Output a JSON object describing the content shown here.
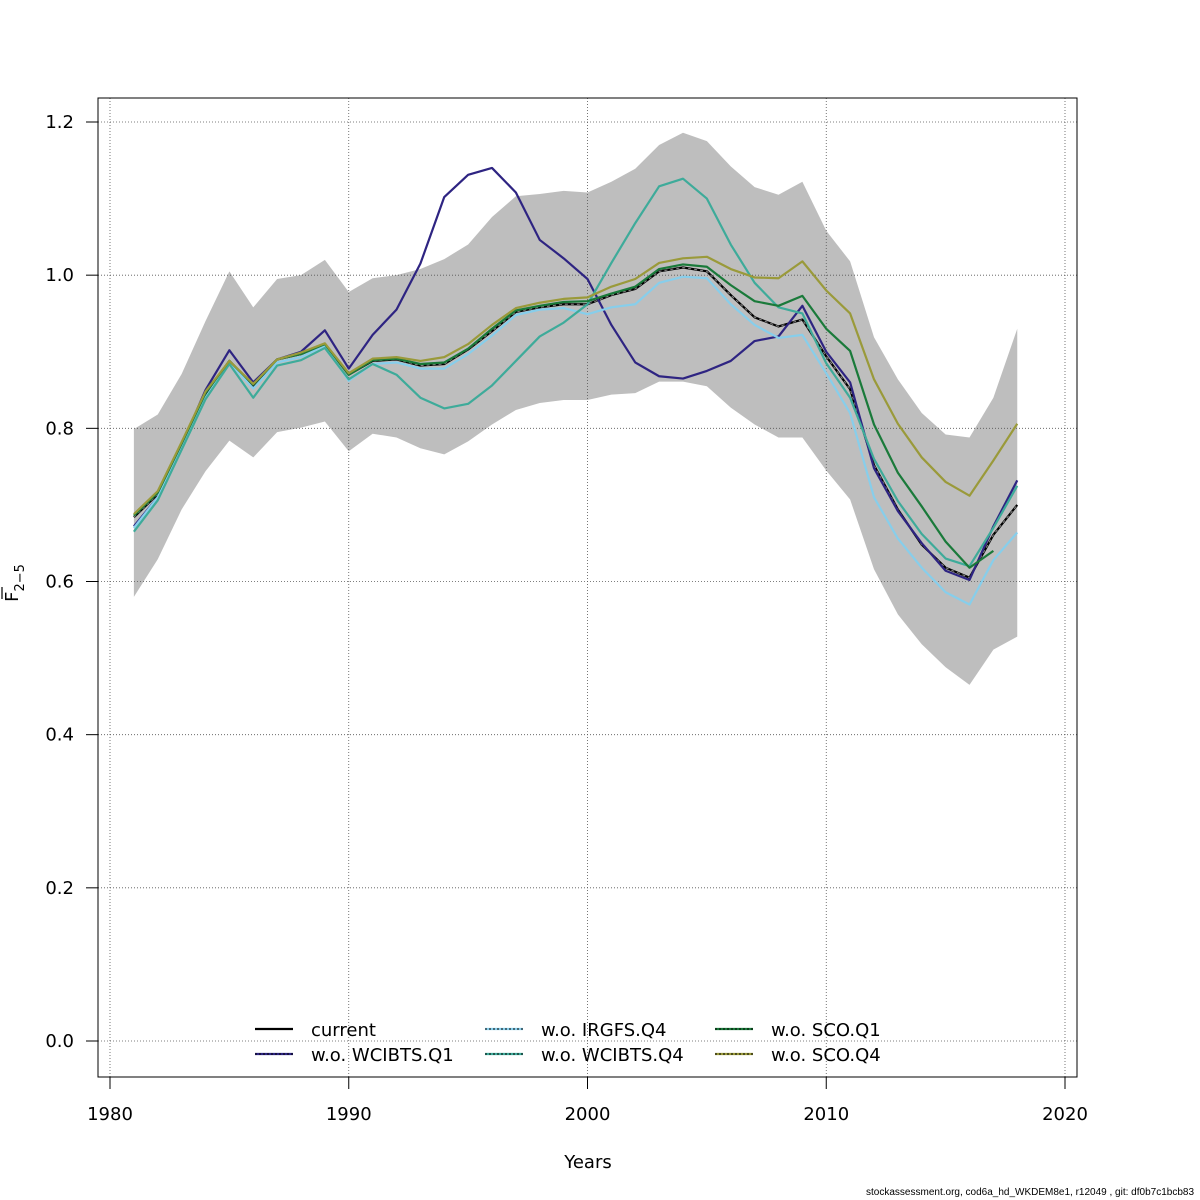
{
  "chart_data": {
    "type": "line",
    "title": "",
    "xlabel": "Years",
    "ylabel": "F̅ 2−5",
    "ylabel_main": "F",
    "ylabel_sub": "2−5",
    "xlim": [
      1980,
      2020
    ],
    "ylim": [
      0.0,
      1.2
    ],
    "xticks": [
      "1980",
      "1990",
      "2000",
      "2010",
      "2020"
    ],
    "yticks": [
      "0.0",
      "0.2",
      "0.4",
      "0.6",
      "0.8",
      "1.0",
      "1.2"
    ],
    "grid": true,
    "legend_position": "bottom-center",
    "x": [
      1981,
      1982,
      1983,
      1984,
      1985,
      1986,
      1987,
      1988,
      1989,
      1990,
      1991,
      1992,
      1993,
      1994,
      1995,
      1996,
      1997,
      1998,
      1999,
      2000,
      2001,
      2002,
      2003,
      2004,
      2005,
      2006,
      2007,
      2008,
      2009,
      2010,
      2011,
      2012,
      2013,
      2014,
      2015,
      2016,
      2017,
      2018
    ],
    "confidence_band": {
      "name": "current 95% CI",
      "color": "#bebebe",
      "upper": [
        0.799,
        0.818,
        0.871,
        0.94,
        1.005,
        0.958,
        0.995,
        1.0,
        1.02,
        0.978,
        0.996,
        1.0,
        1.008,
        1.021,
        1.04,
        1.076,
        1.103,
        1.106,
        1.11,
        1.108,
        1.122,
        1.139,
        1.17,
        1.186,
        1.175,
        1.142,
        1.115,
        1.105,
        1.122,
        1.058,
        1.018,
        0.919,
        0.864,
        0.82,
        0.792,
        0.788,
        0.84,
        0.93
      ],
      "lower": [
        0.58,
        0.629,
        0.694,
        0.744,
        0.784,
        0.762,
        0.795,
        0.801,
        0.809,
        0.77,
        0.793,
        0.788,
        0.774,
        0.766,
        0.783,
        0.805,
        0.824,
        0.833,
        0.837,
        0.837,
        0.844,
        0.846,
        0.861,
        0.861,
        0.855,
        0.827,
        0.805,
        0.788,
        0.788,
        0.745,
        0.707,
        0.616,
        0.557,
        0.518,
        0.488,
        0.465,
        0.511,
        0.528
      ]
    },
    "series": [
      {
        "name": "current",
        "color": "#000000",
        "dash": false,
        "values": [
          0.684,
          0.714,
          0.78,
          0.845,
          0.888,
          0.856,
          0.89,
          0.897,
          0.91,
          0.87,
          0.888,
          0.89,
          0.882,
          0.884,
          0.903,
          0.927,
          0.952,
          0.958,
          0.962,
          0.962,
          0.974,
          0.982,
          1.005,
          1.01,
          1.005,
          0.974,
          0.945,
          0.933,
          0.942,
          0.894,
          0.851,
          0.752,
          0.694,
          0.648,
          0.618,
          0.605,
          0.661,
          0.7
        ]
      },
      {
        "name": "w.o. WCIBTS.Q1",
        "color": "#2e2482",
        "dash": true,
        "values": [
          0.672,
          0.71,
          0.778,
          0.85,
          0.902,
          0.86,
          0.89,
          0.9,
          0.928,
          0.878,
          0.922,
          0.955,
          1.015,
          1.102,
          1.131,
          1.14,
          1.108,
          1.046,
          1.022,
          0.995,
          0.935,
          0.886,
          0.868,
          0.865,
          0.875,
          0.888,
          0.914,
          0.92,
          0.96,
          0.9,
          0.86,
          0.748,
          0.692,
          0.65,
          0.614,
          0.602,
          0.672,
          0.732
        ]
      },
      {
        "name": "w.o. IRGFS.Q4",
        "color": "#87ceeb",
        "dash": true,
        "values": [
          0.67,
          0.71,
          0.774,
          0.84,
          0.886,
          0.852,
          0.886,
          0.893,
          0.908,
          0.862,
          0.884,
          0.886,
          0.878,
          0.878,
          0.897,
          0.921,
          0.948,
          0.955,
          0.957,
          0.949,
          0.958,
          0.962,
          0.99,
          0.998,
          0.996,
          0.962,
          0.935,
          0.918,
          0.922,
          0.872,
          0.82,
          0.71,
          0.656,
          0.618,
          0.586,
          0.57,
          0.628,
          0.664
        ]
      },
      {
        "name": "w.o. WCIBTS.Q4",
        "color": "#3eab9a",
        "dash": true,
        "values": [
          0.665,
          0.706,
          0.772,
          0.838,
          0.884,
          0.84,
          0.882,
          0.889,
          0.905,
          0.864,
          0.884,
          0.87,
          0.84,
          0.826,
          0.832,
          0.856,
          0.888,
          0.92,
          0.938,
          0.962,
          1.016,
          1.068,
          1.116,
          1.126,
          1.1,
          1.04,
          0.99,
          0.958,
          0.95,
          0.885,
          0.84,
          0.76,
          0.705,
          0.662,
          0.63,
          0.62,
          0.67,
          0.725
        ]
      },
      {
        "name": "w.o. SCO.Q1",
        "color": "#1a7a3a",
        "dash": true,
        "values": [
          0.686,
          0.716,
          0.78,
          0.846,
          0.888,
          0.857,
          0.89,
          0.897,
          0.91,
          0.87,
          0.889,
          0.891,
          0.884,
          0.886,
          0.904,
          0.93,
          0.954,
          0.96,
          0.965,
          0.966,
          0.976,
          0.985,
          1.008,
          1.014,
          1.011,
          0.987,
          0.966,
          0.96,
          0.973,
          0.93,
          0.901,
          0.805,
          0.742,
          0.698,
          0.652,
          0.618,
          0.64,
          null
        ]
      },
      {
        "name": "w.o. SCO.Q4",
        "color": "#9a9a3a",
        "dash": true,
        "values": [
          0.688,
          0.718,
          0.782,
          0.848,
          0.888,
          0.858,
          0.89,
          0.899,
          0.911,
          0.872,
          0.891,
          0.893,
          0.888,
          0.893,
          0.91,
          0.935,
          0.957,
          0.964,
          0.969,
          0.971,
          0.985,
          0.995,
          1.016,
          1.022,
          1.024,
          1.008,
          0.997,
          0.996,
          1.018,
          0.98,
          0.95,
          0.864,
          0.806,
          0.762,
          0.73,
          0.712,
          0.758,
          0.806
        ]
      }
    ]
  },
  "footer": "stockassessment.org, cod6a_hd_WKDEM8e1, r12049 , git: df0b7c1bcb83"
}
